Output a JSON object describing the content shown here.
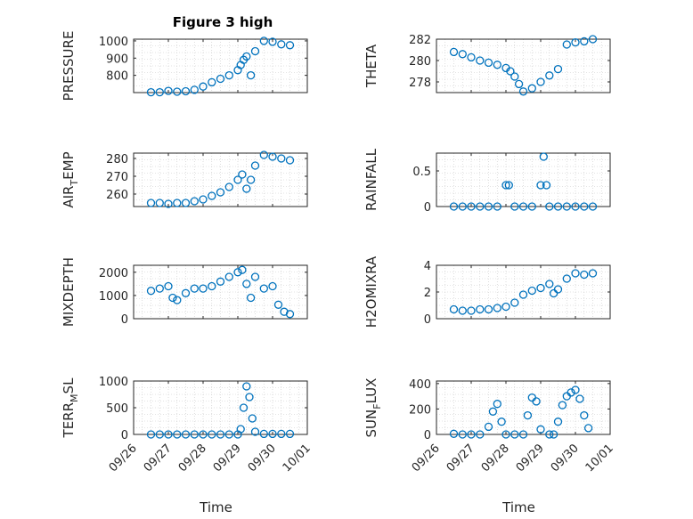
{
  "figure": {
    "title": "Figure 3 high",
    "marker_color": "#0072BD",
    "x_ticks": [
      "09/26",
      "09/27",
      "09/28",
      "09/29",
      "09/30",
      "10/01"
    ],
    "x_range_days": [
      "09/26",
      "10/01"
    ]
  },
  "chart_data": [
    {
      "type": "scatter",
      "name": "pressure",
      "ylabel": "PRESSURE",
      "xlabel": "",
      "ylim": [
        700,
        1010
      ],
      "yticks": [
        800,
        900,
        1000
      ],
      "grid": true,
      "x": [
        "09/26 12:00",
        "09/26 18:00",
        "09/27 00:00",
        "09/27 06:00",
        "09/27 12:00",
        "09/27 18:00",
        "09/28 00:00",
        "09/28 06:00",
        "09/28 12:00",
        "09/28 18:00",
        "09/29 00:00",
        "09/29 02:00",
        "09/29 04:00",
        "09/29 06:00",
        "09/29 09:00",
        "09/29 12:00",
        "09/29 18:00",
        "09/30 00:00",
        "09/30 06:00",
        "09/30 12:00"
      ],
      "y": [
        702,
        702,
        710,
        705,
        708,
        716,
        735,
        760,
        780,
        800,
        830,
        860,
        890,
        910,
        800,
        940,
        1000,
        995,
        980,
        975
      ]
    },
    {
      "type": "scatter",
      "name": "theta",
      "ylabel": "THETA",
      "xlabel": "",
      "ylim": [
        277,
        282
      ],
      "yticks": [
        278,
        280,
        282
      ],
      "grid": true,
      "x": [
        "09/26 12:00",
        "09/26 18:00",
        "09/27 00:00",
        "09/27 06:00",
        "09/27 12:00",
        "09/27 18:00",
        "09/28 00:00",
        "09/28 03:00",
        "09/28 06:00",
        "09/28 09:00",
        "09/28 12:00",
        "09/28 18:00",
        "09/29 00:00",
        "09/29 06:00",
        "09/29 12:00",
        "09/29 18:00",
        "09/30 00:00",
        "09/30 06:00",
        "09/30 12:00"
      ],
      "y": [
        280.8,
        280.6,
        280.3,
        280.0,
        279.8,
        279.6,
        279.3,
        279.0,
        278.5,
        277.8,
        277.1,
        277.4,
        278.0,
        278.6,
        279.2,
        281.5,
        281.7,
        281.8,
        282.0
      ]
    },
    {
      "type": "scatter",
      "name": "air-temp",
      "ylabel": "AIR",
      "ylabel_sub": "T",
      "ylabel_tail": "EMP",
      "xlabel": "",
      "ylim": [
        253,
        283
      ],
      "yticks": [
        260,
        270,
        280
      ],
      "grid": true,
      "x": [
        "09/26 12:00",
        "09/26 18:00",
        "09/27 00:00",
        "09/27 06:00",
        "09/27 12:00",
        "09/27 18:00",
        "09/28 00:00",
        "09/28 06:00",
        "09/28 12:00",
        "09/28 18:00",
        "09/29 00:00",
        "09/29 03:00",
        "09/29 06:00",
        "09/29 09:00",
        "09/29 12:00",
        "09/29 18:00",
        "09/30 00:00",
        "09/30 06:00",
        "09/30 12:00"
      ],
      "y": [
        255,
        255,
        254.5,
        255,
        255,
        256,
        257,
        259,
        261,
        264,
        268,
        271,
        263,
        268,
        276,
        282,
        281,
        280,
        279
      ]
    },
    {
      "type": "scatter",
      "name": "rainfall",
      "ylabel": "RAINFALL",
      "xlabel": "",
      "ylim": [
        0,
        0.75
      ],
      "yticks": [
        0,
        0.5
      ],
      "ytick_labels": [
        "0",
        "0.5"
      ],
      "grid": true,
      "x": [
        "09/26 12:00",
        "09/26 18:00",
        "09/27 00:00",
        "09/27 06:00",
        "09/27 12:00",
        "09/27 18:00",
        "09/28 00:00",
        "09/28 02:00",
        "09/28 06:00",
        "09/28 12:00",
        "09/28 18:00",
        "09/29 00:00",
        "09/29 02:00",
        "09/29 04:00",
        "09/29 06:00",
        "09/29 12:00",
        "09/29 18:00",
        "09/30 00:00",
        "09/30 06:00",
        "09/30 12:00"
      ],
      "y": [
        0,
        0,
        0,
        0,
        0,
        0,
        0.3,
        0.3,
        0,
        0,
        0,
        0.3,
        0.7,
        0.3,
        0,
        0,
        0,
        0,
        0,
        0
      ]
    },
    {
      "type": "scatter",
      "name": "mixdepth",
      "ylabel": "MIXDEPTH",
      "xlabel": "",
      "ylim": [
        0,
        2300
      ],
      "yticks": [
        0,
        1000,
        2000
      ],
      "grid": true,
      "x": [
        "09/26 12:00",
        "09/26 18:00",
        "09/27 00:00",
        "09/27 03:00",
        "09/27 06:00",
        "09/27 12:00",
        "09/27 18:00",
        "09/28 00:00",
        "09/28 06:00",
        "09/28 12:00",
        "09/28 18:00",
        "09/29 00:00",
        "09/29 03:00",
        "09/29 06:00",
        "09/29 09:00",
        "09/29 12:00",
        "09/29 18:00",
        "09/30 00:00",
        "09/30 04:00",
        "09/30 08:00",
        "09/30 12:00"
      ],
      "y": [
        1200,
        1300,
        1400,
        900,
        800,
        1100,
        1300,
        1300,
        1400,
        1600,
        1800,
        2000,
        2100,
        1500,
        900,
        1800,
        1300,
        1400,
        600,
        300,
        200
      ]
    },
    {
      "type": "scatter",
      "name": "h2omixra",
      "ylabel": "H2OMIXRA",
      "xlabel": "",
      "ylim": [
        0,
        4
      ],
      "yticks": [
        0,
        2,
        4
      ],
      "grid": true,
      "x": [
        "09/26 12:00",
        "09/26 18:00",
        "09/27 00:00",
        "09/27 06:00",
        "09/27 12:00",
        "09/27 18:00",
        "09/28 00:00",
        "09/28 06:00",
        "09/28 12:00",
        "09/28 18:00",
        "09/29 00:00",
        "09/29 06:00",
        "09/29 09:00",
        "09/29 12:00",
        "09/29 18:00",
        "09/30 00:00",
        "09/30 06:00",
        "09/30 12:00"
      ],
      "y": [
        0.7,
        0.6,
        0.6,
        0.7,
        0.7,
        0.8,
        0.9,
        1.2,
        1.8,
        2.1,
        2.3,
        2.6,
        1.9,
        2.2,
        3.0,
        3.4,
        3.3,
        3.4
      ]
    },
    {
      "type": "scatter",
      "name": "terr-msl",
      "ylabel": "TERR",
      "ylabel_sub": "M",
      "ylabel_tail": "SL",
      "xlabel": "Time",
      "ylim": [
        0,
        1000
      ],
      "yticks": [
        0,
        500,
        1000
      ],
      "grid": true,
      "x": [
        "09/26 12:00",
        "09/26 18:00",
        "09/27 00:00",
        "09/27 06:00",
        "09/27 12:00",
        "09/27 18:00",
        "09/28 00:00",
        "09/28 06:00",
        "09/28 12:00",
        "09/28 18:00",
        "09/29 00:00",
        "09/29 02:00",
        "09/29 04:00",
        "09/29 06:00",
        "09/29 08:00",
        "09/29 10:00",
        "09/29 12:00",
        "09/29 18:00",
        "09/30 00:00",
        "09/30 06:00",
        "09/30 12:00"
      ],
      "y": [
        0,
        0,
        0,
        0,
        0,
        0,
        0,
        0,
        0,
        0,
        0,
        100,
        500,
        900,
        700,
        300,
        50,
        10,
        10,
        10,
        10
      ]
    },
    {
      "type": "scatter",
      "name": "sun-flux",
      "ylabel": "SUN",
      "ylabel_sub": "F",
      "ylabel_tail": "LUX",
      "xlabel": "Time",
      "ylim": [
        0,
        420
      ],
      "yticks": [
        0,
        200,
        400
      ],
      "grid": true,
      "x": [
        "09/26 12:00",
        "09/26 18:00",
        "09/27 00:00",
        "09/27 06:00",
        "09/27 12:00",
        "09/27 15:00",
        "09/27 18:00",
        "09/27 21:00",
        "09/28 00:00",
        "09/28 06:00",
        "09/28 12:00",
        "09/28 15:00",
        "09/28 18:00",
        "09/28 21:00",
        "09/29 00:00",
        "09/29 06:00",
        "09/29 09:00",
        "09/29 12:00",
        "09/29 15:00",
        "09/29 18:00",
        "09/29 21:00",
        "09/30 00:00",
        "09/30 03:00",
        "09/30 06:00",
        "09/30 09:00"
      ],
      "y": [
        5,
        0,
        0,
        0,
        60,
        180,
        240,
        100,
        0,
        0,
        0,
        150,
        290,
        260,
        40,
        0,
        0,
        100,
        230,
        300,
        330,
        350,
        280,
        150,
        50
      ]
    }
  ]
}
